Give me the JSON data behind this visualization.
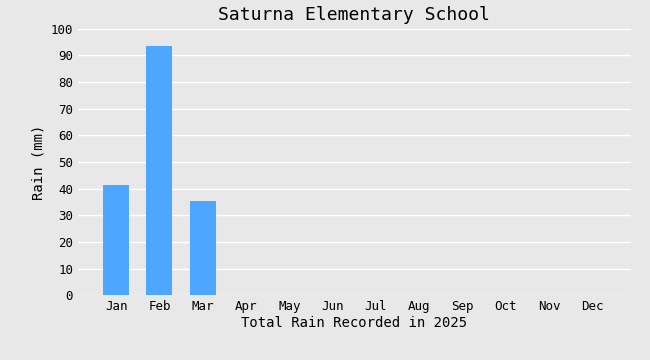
{
  "title": "Saturna Elementary School",
  "xlabel": "Total Rain Recorded in 2025",
  "ylabel": "Rain (mm)",
  "categories": [
    "Jan",
    "Feb",
    "Mar",
    "Apr",
    "May",
    "Jun",
    "Jul",
    "Aug",
    "Sep",
    "Oct",
    "Nov",
    "Dec"
  ],
  "values": [
    41.5,
    93.5,
    35.5,
    0,
    0,
    0,
    0,
    0,
    0,
    0,
    0,
    0
  ],
  "bar_color": "#4DA6FF",
  "ylim": [
    0,
    100
  ],
  "yticks": [
    0,
    10,
    20,
    30,
    40,
    50,
    60,
    70,
    80,
    90,
    100
  ],
  "background_color": "#E8E8E8",
  "grid_color": "#FFFFFF",
  "title_fontsize": 13,
  "label_fontsize": 10,
  "tick_fontsize": 9,
  "font_family": "monospace"
}
